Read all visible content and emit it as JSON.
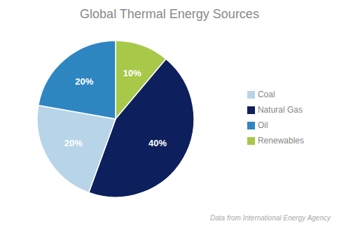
{
  "chart_data": {
    "type": "pie",
    "title": "Global Thermal Energy Sources",
    "categories": [
      "Renewables",
      "Natural Gas",
      "Coal",
      "Oil"
    ],
    "values": [
      10,
      40,
      20,
      20
    ],
    "value_labels": [
      "10%",
      "40%",
      "20%",
      "20%"
    ],
    "colors": [
      "#a8c84a",
      "#0d1f5c",
      "#b8d4e8",
      "#2e86c1"
    ],
    "data_labels": true,
    "legend": "right",
    "annotations": [
      "Data from International Energy Agency"
    ]
  }
}
